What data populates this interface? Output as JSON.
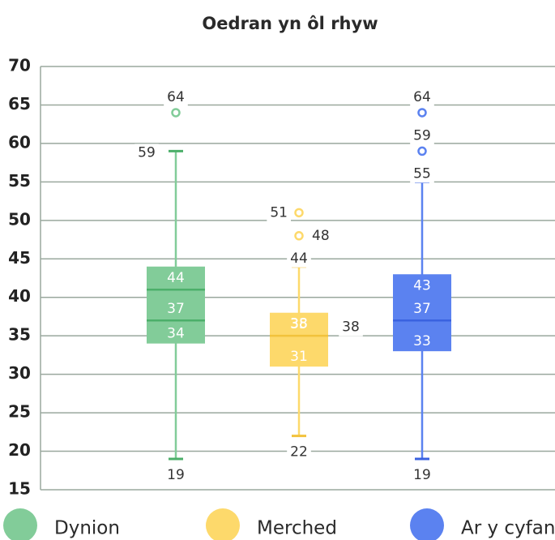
{
  "chart_data": {
    "type": "box",
    "title": "Oedran yn ôl rhyw",
    "ylim": [
      15,
      70
    ],
    "yticks": [
      15,
      20,
      25,
      30,
      35,
      40,
      45,
      50,
      55,
      60,
      65,
      70
    ],
    "grid": true,
    "series": [
      {
        "name": "Dynion",
        "color": "#82cc99",
        "lo": 19,
        "q1": 34,
        "median": 37,
        "mean": 41,
        "q3": 44,
        "hi": 59,
        "outliers": [
          64
        ]
      },
      {
        "name": "Merched",
        "color": "#fdd96b",
        "lo": 22,
        "q1": 31,
        "median": 35,
        "q3": 38,
        "hi": 44,
        "outliers": [
          51,
          48
        ]
      },
      {
        "name": "Ar y cyfan",
        "color": "#5b82f0",
        "lo": 19,
        "q1": 33,
        "median": 37,
        "q3": 43,
        "hi": 55,
        "outliers": [
          64,
          59
        ]
      }
    ]
  }
}
